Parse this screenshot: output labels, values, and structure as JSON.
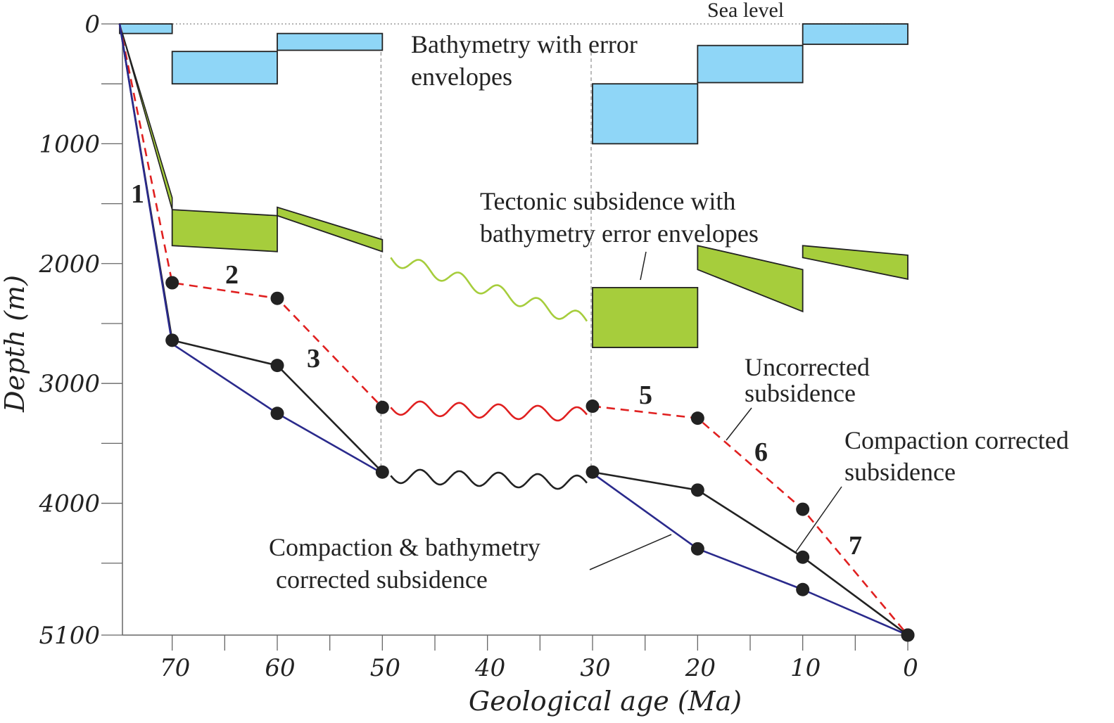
{
  "chart_data": {
    "type": "line",
    "xlabel": "Geological age (Ma)",
    "ylabel": "Depth (m)",
    "xlim": [
      75,
      0
    ],
    "ylim": [
      0,
      5100
    ],
    "x_ticks": [
      70,
      60,
      50,
      40,
      30,
      20,
      10,
      0
    ],
    "x_tick_labels": [
      "70",
      "60",
      "50",
      "40",
      "30",
      "20",
      "10",
      "0"
    ],
    "y_ticks": [
      0,
      1000,
      2000,
      3000,
      4000,
      5100
    ],
    "y_tick_labels": [
      "0",
      "1000",
      "2000",
      "3000",
      "4000",
      "5100"
    ],
    "sea_level_label": "Sea level",
    "hiatus": [
      50,
      30
    ],
    "bathymetry": [
      {
        "x0": 75,
        "x1": 70,
        "top": 0,
        "bottom": 80
      },
      {
        "x0": 70,
        "x1": 60,
        "top": 230,
        "bottom": 500
      },
      {
        "x0": 60,
        "x1": 50,
        "top": 80,
        "bottom": 220
      },
      {
        "x0": 30,
        "x1": 20,
        "top": 500,
        "bottom": 1000
      },
      {
        "x0": 20,
        "x1": 10,
        "top": 180,
        "bottom": 490
      },
      {
        "x0": 10,
        "x1": 0,
        "top": 0,
        "bottom": 170
      }
    ],
    "tectonic": [
      {
        "x0": 70,
        "x1": 60,
        "top0": 1550,
        "top1": 1600,
        "bot0": 1850,
        "bot1": 1900
      },
      {
        "x0": 60,
        "x1": 50,
        "top0": 1530,
        "top1": 1800,
        "bot0": 1600,
        "bot1": 1900
      },
      {
        "x0": 30,
        "x1": 20,
        "top0": 2200,
        "top1": 2200,
        "bot0": 2700,
        "bot1": 2700
      },
      {
        "x0": 20,
        "x1": 10,
        "top0": 1850,
        "top1": 2050,
        "bot0": 2050,
        "bot1": 2400
      },
      {
        "x0": 10,
        "x1": 0,
        "top0": 1850,
        "top1": 1930,
        "bot0": 1950,
        "bot1": 2130
      }
    ],
    "tectonic_early": {
      "x": [
        75,
        70
      ],
      "top": [
        0,
        1450
      ],
      "bottom": [
        0,
        1550
      ]
    },
    "series": [
      {
        "name": "Uncorrected subsidence",
        "color": "#e02020",
        "dash": true,
        "x": [
          75,
          70,
          60,
          50,
          30,
          20,
          10,
          0
        ],
        "y": [
          0,
          2160,
          2290,
          3200,
          3190,
          3290,
          4050,
          5100
        ],
        "markers": [
          70,
          60,
          50,
          30,
          20,
          10,
          0
        ]
      },
      {
        "name": "Compaction corrected subsidence",
        "color": "#222222",
        "dash": false,
        "x": [
          75,
          70,
          60,
          50,
          30,
          20,
          10,
          0
        ],
        "y": [
          0,
          2640,
          2850,
          3740,
          3740,
          3890,
          4450,
          5100
        ],
        "markers": [
          70,
          60,
          50,
          30,
          20,
          10,
          0
        ]
      },
      {
        "name": "Compaction & bathymetry corrected subsidence",
        "color": "#2a2a8c",
        "dash": false,
        "x": [
          75,
          70,
          60,
          50,
          30,
          20,
          10,
          0
        ],
        "y": [
          0,
          2670,
          3250,
          3750,
          3750,
          4380,
          4720,
          5100
        ],
        "markers": [
          60,
          20,
          10
        ]
      }
    ],
    "wavy_lines": [
      {
        "color": "#a6cd3c",
        "y0": 1950,
        "y1": 2480
      },
      {
        "color": "#e02020",
        "y0": 3200,
        "y1": 3260
      },
      {
        "color": "#222222",
        "y0": 3770,
        "y1": 3830
      }
    ],
    "annotations": {
      "bathymetry": [
        "Bathymetry with error",
        "envelopes"
      ],
      "tectonic": [
        "Tectonic subsidence with",
        "bathymetry error envelopes"
      ],
      "uncorrected": [
        "Uncorrected",
        "subsidence"
      ],
      "compaction": [
        "Compaction corrected",
        "subsidence"
      ],
      "comp_bathy": [
        "Compaction & bathymetry",
        "corrected subsidence"
      ]
    },
    "segment_numbers": [
      "1",
      "2",
      "3",
      "5",
      "6",
      "7"
    ],
    "colors": {
      "bathymetry_fill": "#8fd6f7",
      "tectonic_fill": "#a6cd3c",
      "uncorrected": "#e02020",
      "compaction": "#222222",
      "comp_bathy": "#2a2a8c"
    }
  }
}
